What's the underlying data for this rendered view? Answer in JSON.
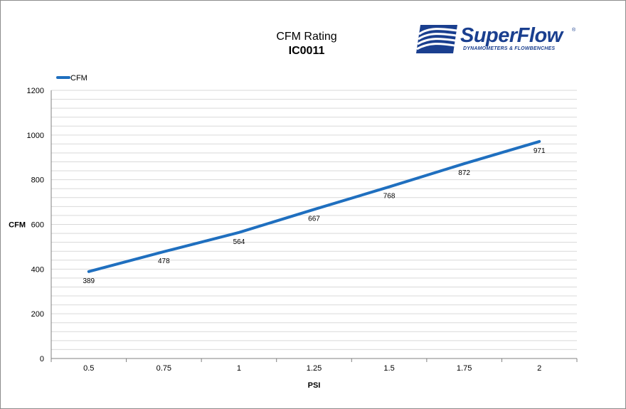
{
  "header": {
    "title_line1": "CFM Rating",
    "title_line2": "IC0011"
  },
  "logo": {
    "brand": "SuperFlow",
    "tagline": "DYNAMOMETERS & FLOWBENCHES",
    "trademark": "®"
  },
  "colors": {
    "series": "#1f6fbf",
    "grid": "#d9d9d9",
    "axis": "#808080",
    "logo": "#1a3f8f"
  },
  "chart_data": {
    "type": "line",
    "title": "CFM Rating IC0011",
    "xlabel": "PSI",
    "ylabel": "CFM",
    "categories": [
      "0.5",
      "0.75",
      "1",
      "1.25",
      "1.5",
      "1.75",
      "2"
    ],
    "series": [
      {
        "name": "CFM",
        "values": [
          389,
          478,
          564,
          667,
          768,
          872,
          971
        ]
      }
    ],
    "ylim": [
      0,
      1200
    ],
    "y_ticks": [
      0,
      200,
      400,
      600,
      800,
      1000,
      1200
    ],
    "minor_gridline_step": 40,
    "data_labels": true,
    "grid": true,
    "legend": "top-left"
  }
}
